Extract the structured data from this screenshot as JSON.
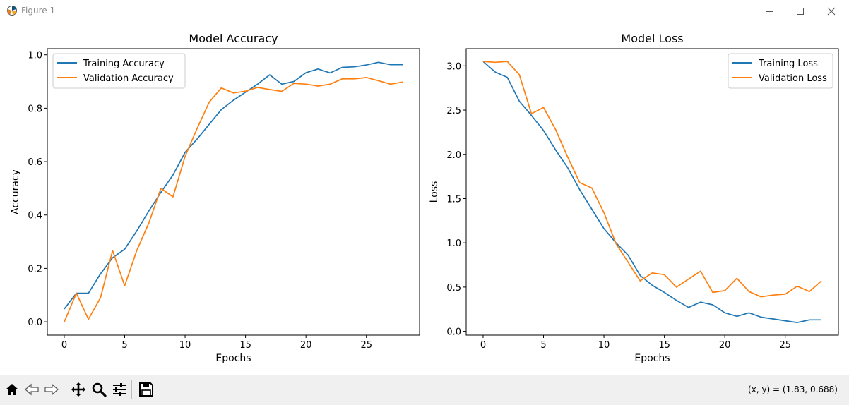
{
  "window": {
    "title": "Figure 1",
    "icon": "matplotlib-icon",
    "controls": [
      "minimize-icon",
      "maximize-icon",
      "close-icon"
    ]
  },
  "toolbar": {
    "tools": [
      "home-icon",
      "back-icon",
      "forward-icon",
      "pan-icon",
      "zoom-icon",
      "configure-subplots-icon",
      "save-icon"
    ],
    "coords": "(x, y) = (1.83, 0.688)"
  },
  "colors": {
    "training": "#1f77b4",
    "validation": "#ff7f0e",
    "toolbar_bg": "#f0f0f0"
  },
  "chart_data": [
    {
      "type": "line",
      "title": "Model Accuracy",
      "xlabel": "Epochs",
      "ylabel": "Accuracy",
      "xlim": [
        -1.4,
        29.4
      ],
      "ylim": [
        -0.05,
        1.023
      ],
      "xticks": [
        0,
        5,
        10,
        15,
        20,
        25
      ],
      "yticks": [
        0.0,
        0.2,
        0.4,
        0.6,
        0.8,
        1.0
      ],
      "ytick_labels": [
        "0.0",
        "0.2",
        "0.4",
        "0.6",
        "0.8",
        "1.0"
      ],
      "grid": false,
      "legend": "upper left",
      "x": [
        0,
        1,
        2,
        3,
        4,
        5,
        6,
        7,
        8,
        9,
        10,
        11,
        12,
        13,
        14,
        15,
        16,
        17,
        18,
        19,
        20,
        21,
        22,
        23,
        24,
        25,
        26,
        27,
        28
      ],
      "series": [
        {
          "name": "Training Accuracy",
          "color": "#1f77b4",
          "values": [
            0.048,
            0.107,
            0.107,
            0.18,
            0.24,
            0.272,
            0.34,
            0.415,
            0.485,
            0.55,
            0.635,
            0.685,
            0.74,
            0.795,
            0.83,
            0.86,
            0.89,
            0.925,
            0.89,
            0.9,
            0.933,
            0.947,
            0.932,
            0.953,
            0.955,
            0.962,
            0.972,
            0.963,
            0.963
          ]
        },
        {
          "name": "Validation Accuracy",
          "color": "#ff7f0e",
          "values": [
            0.0,
            0.107,
            0.01,
            0.09,
            0.267,
            0.135,
            0.267,
            0.37,
            0.5,
            0.468,
            0.62,
            0.725,
            0.823,
            0.876,
            0.857,
            0.864,
            0.878,
            0.87,
            0.863,
            0.893,
            0.89,
            0.883,
            0.89,
            0.91,
            0.91,
            0.915,
            0.903,
            0.89,
            0.898
          ]
        }
      ]
    },
    {
      "type": "line",
      "title": "Model Loss",
      "xlabel": "Epochs",
      "ylabel": "Loss",
      "xlim": [
        -1.4,
        29.4
      ],
      "ylim": [
        -0.043,
        3.194
      ],
      "xticks": [
        0,
        5,
        10,
        15,
        20,
        25
      ],
      "yticks": [
        0.0,
        0.5,
        1.0,
        1.5,
        2.0,
        2.5,
        3.0
      ],
      "ytick_labels": [
        "0.0",
        "0.5",
        "1.0",
        "1.5",
        "2.0",
        "2.5",
        "3.0"
      ],
      "grid": false,
      "legend": "upper right",
      "x": [
        0,
        1,
        2,
        3,
        4,
        5,
        6,
        7,
        8,
        9,
        10,
        11,
        12,
        13,
        14,
        15,
        16,
        17,
        18,
        19,
        20,
        21,
        22,
        23,
        24,
        25,
        26,
        27,
        28
      ],
      "series": [
        {
          "name": "Training Loss",
          "color": "#1f77b4",
          "values": [
            3.05,
            2.93,
            2.87,
            2.6,
            2.44,
            2.27,
            2.05,
            1.85,
            1.6,
            1.38,
            1.16,
            1.0,
            0.86,
            0.63,
            0.52,
            0.44,
            0.35,
            0.27,
            0.33,
            0.3,
            0.21,
            0.17,
            0.21,
            0.16,
            0.14,
            0.12,
            0.1,
            0.13,
            0.13
          ]
        },
        {
          "name": "Validation Loss",
          "color": "#ff7f0e",
          "values": [
            3.05,
            3.04,
            3.05,
            2.9,
            2.46,
            2.53,
            2.28,
            1.97,
            1.68,
            1.62,
            1.34,
            0.99,
            0.78,
            0.57,
            0.66,
            0.64,
            0.5,
            0.59,
            0.68,
            0.44,
            0.46,
            0.6,
            0.45,
            0.39,
            0.41,
            0.42,
            0.51,
            0.45,
            0.57
          ]
        }
      ]
    }
  ]
}
